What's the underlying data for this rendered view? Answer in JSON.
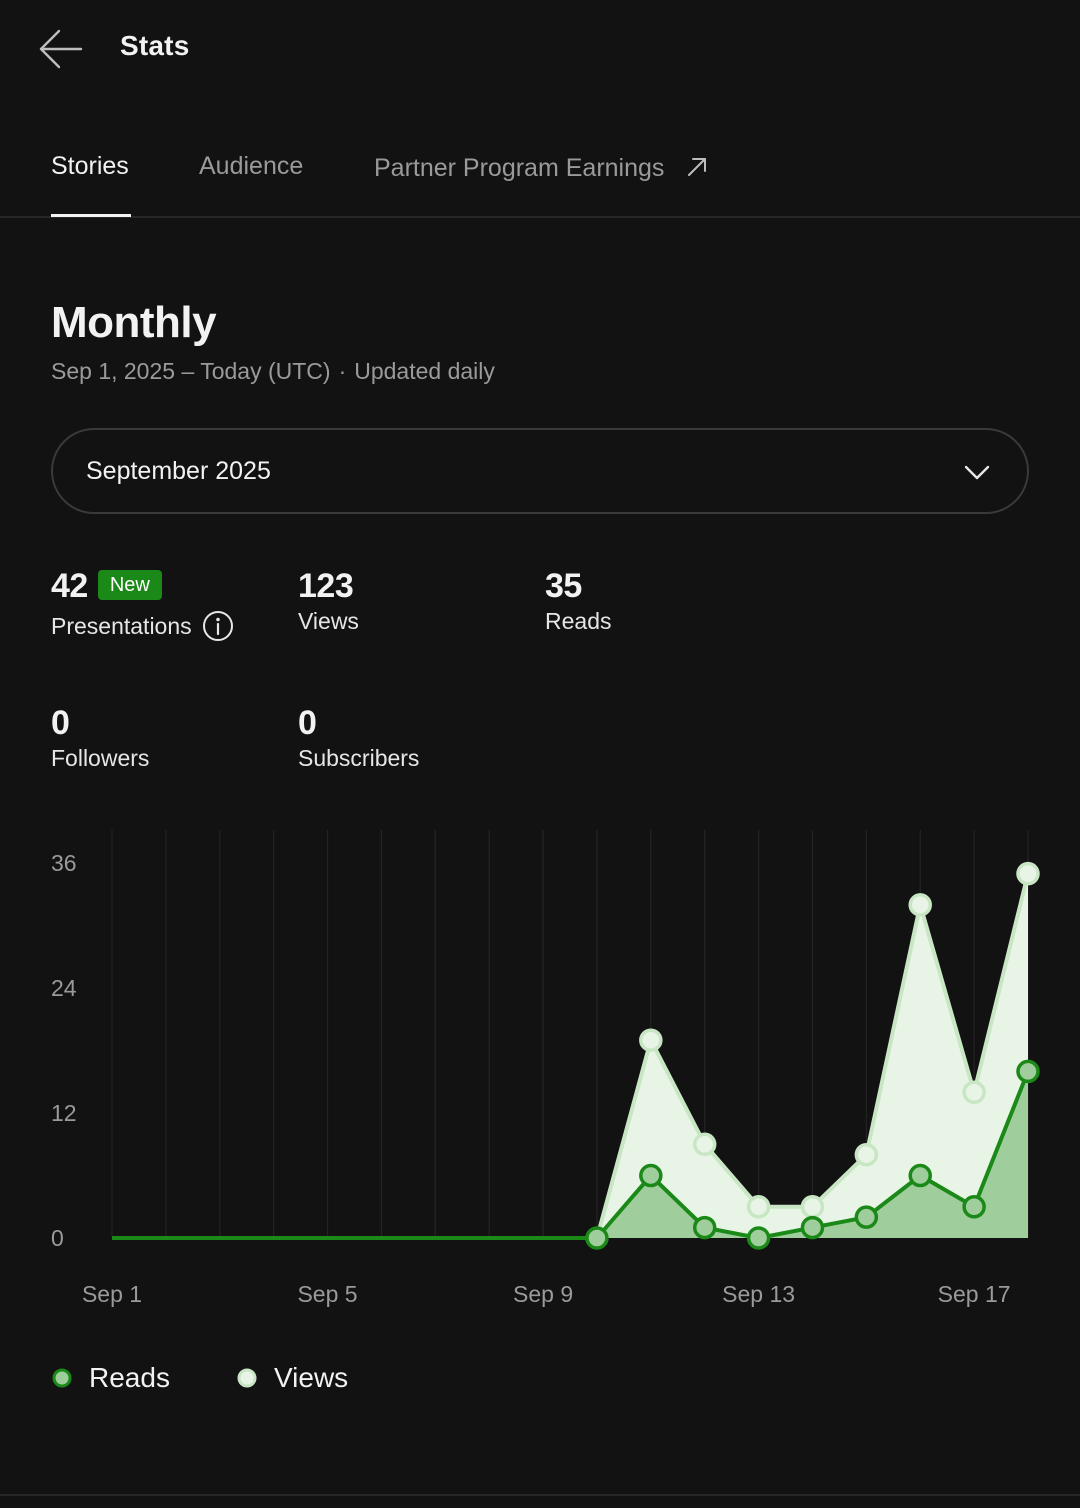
{
  "header": {
    "title": "Stats",
    "back_icon": "arrow-left-icon"
  },
  "tabs": [
    {
      "label": "Stories",
      "active": true
    },
    {
      "label": "Audience",
      "active": false
    },
    {
      "label": "Partner Program Earnings",
      "active": false,
      "icon": "external-arrow-icon"
    }
  ],
  "section": {
    "title": "Monthly",
    "date_range": "Sep 1, 2025 – Today (UTC)",
    "separator": "·",
    "update_note": "Updated daily"
  },
  "month_select": {
    "value": "September 2025",
    "icon": "chevron-down-icon"
  },
  "stats": {
    "presentations": {
      "value": "42",
      "label": "Presentations",
      "badge": "New",
      "icon": "info-icon"
    },
    "views": {
      "value": "123",
      "label": "Views"
    },
    "reads": {
      "value": "35",
      "label": "Reads"
    },
    "followers": {
      "value": "0",
      "label": "Followers"
    },
    "subscribers": {
      "value": "0",
      "label": "Subscribers"
    }
  },
  "colors": {
    "background": "#121212",
    "reads_line": "#1a8917",
    "reads_fill": "#9fce9c",
    "views_line": "#c8e6c4",
    "views_fill": "#e8f5e6",
    "badge": "#1a8917",
    "muted_text": "#9a9a9a"
  },
  "chart_data": {
    "type": "area",
    "x": [
      "Sep 1",
      "Sep 2",
      "Sep 3",
      "Sep 4",
      "Sep 5",
      "Sep 6",
      "Sep 7",
      "Sep 8",
      "Sep 9",
      "Sep 10",
      "Sep 11",
      "Sep 12",
      "Sep 13",
      "Sep 14",
      "Sep 15",
      "Sep 16",
      "Sep 17",
      "Sep 18"
    ],
    "x_tick_labels": [
      "Sep 1",
      "Sep 5",
      "Sep 9",
      "Sep 13",
      "Sep 17"
    ],
    "x_tick_indices": [
      0,
      4,
      8,
      12,
      16
    ],
    "y_ticks": [
      0,
      12,
      24,
      36
    ],
    "ylim": [
      0,
      39
    ],
    "series": [
      {
        "name": "Views",
        "values": [
          0,
          0,
          0,
          0,
          0,
          0,
          0,
          0,
          0,
          0,
          19,
          9,
          3,
          3,
          8,
          32,
          14,
          35
        ]
      },
      {
        "name": "Reads",
        "values": [
          0,
          0,
          0,
          0,
          0,
          0,
          0,
          0,
          0,
          0,
          6,
          1,
          0,
          1,
          2,
          6,
          3,
          16
        ]
      }
    ],
    "markers_from_index": 9,
    "grid": true,
    "legend": "bottom-left"
  },
  "legend": [
    {
      "label": "Reads"
    },
    {
      "label": "Views"
    }
  ]
}
